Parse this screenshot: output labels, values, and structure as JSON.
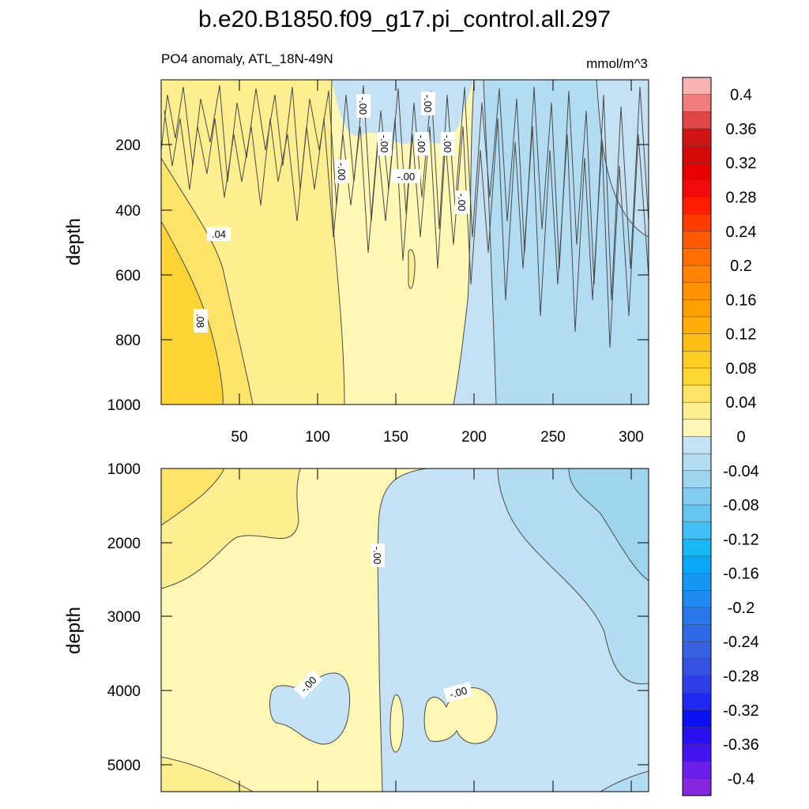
{
  "title": "b.e20.B1850.f09_g17.pi_control.all.297",
  "subtitle_left": "PO4 anomaly, ATL_18N-49N",
  "subtitle_right": "mmol/m^3",
  "colors": {
    "neg_light": "#c4e2f3",
    "neg_mid": "#b2dcf2",
    "neg_dark": "#9ed4ee",
    "pos_pale": "#fef8b4",
    "pos_light": "#fdef90",
    "pos_mid": "#fde468",
    "pos_deep": "#fcd535",
    "contour": "#4a4a4a"
  },
  "chart_data": [
    {
      "type": "contour",
      "panel": "upper",
      "variable": "PO4 anomaly",
      "region": "ATL_18N-49N",
      "units": "mmol/m^3",
      "xlabel": "",
      "ylabel": "depth",
      "xlim": [
        0,
        310
      ],
      "ylim": [
        1000,
        0
      ],
      "x_ticks": [
        50,
        100,
        150,
        200,
        250,
        300
      ],
      "y_ticks": [
        200,
        400,
        600,
        800,
        1000
      ],
      "regions": [
        {
          "x_from": 0,
          "x_to": 120,
          "sign": "positive",
          "max_value": 0.08
        },
        {
          "x_from": 120,
          "x_to": 195,
          "sign": "positive",
          "max_value": 0.04
        },
        {
          "x_from": 195,
          "x_to": 310,
          "sign": "negative",
          "min_value": -0.04
        }
      ],
      "contour_labels": [
        ".04",
        ".08",
        "-.00",
        "-.00",
        "-.00",
        "-.00",
        "-.00",
        "-.00",
        "-.00",
        "-.00"
      ]
    },
    {
      "type": "contour",
      "panel": "lower",
      "variable": "PO4 anomaly",
      "region": "ATL_18N-49N",
      "units": "mmol/m^3",
      "xlabel": "",
      "ylabel": "depth",
      "xlim": [
        0,
        310
      ],
      "ylim": [
        5400,
        1000
      ],
      "x_ticks": [],
      "y_ticks": [
        1000,
        2000,
        3000,
        4000,
        5000
      ],
      "regions": [
        {
          "x_from": 0,
          "x_to": 140,
          "sign": "positive",
          "max_value": 0.08
        },
        {
          "x_from": 140,
          "x_to": 310,
          "sign": "negative",
          "min_value": -0.08
        }
      ],
      "contour_labels": [
        "-.00",
        "-.00",
        "-.00"
      ]
    }
  ],
  "colorbar": {
    "labels": [
      "0.4",
      "0.36",
      "0.32",
      "0.28",
      "0.24",
      "0.2",
      "0.16",
      "0.12",
      "0.08",
      "0.04",
      "0",
      "-0.04",
      "-0.08",
      "-0.12",
      "-0.16",
      "-0.2",
      "-0.24",
      "-0.28",
      "-0.32",
      "-0.36",
      "-0.4"
    ],
    "colors": [
      "#f9b3b3",
      "#f07c7c",
      "#e04848",
      "#cf1414",
      "#d60a0a",
      "#e80000",
      "#f30a0a",
      "#ff1e00",
      "#ff3c00",
      "#ff5a00",
      "#ff6e00",
      "#ff8200",
      "#ff9200",
      "#ffa000",
      "#ffae08",
      "#ffbe14",
      "#ffcc22",
      "#fed732",
      "#fde468",
      "#fdef90",
      "#fef8b4",
      "#c4e2f3",
      "#b2dcf2",
      "#9ed4ee",
      "#80cbef",
      "#66c4f2",
      "#40c0f7",
      "#18b8f7",
      "#0aa8f6",
      "#1498f4",
      "#1e8af2",
      "#2878ec",
      "#2e6ae6",
      "#3760e2",
      "#3652e0",
      "#2e3de6",
      "#1e28ee",
      "#0a10f0",
      "#2b0ff0",
      "#4413ee",
      "#6a1ee8",
      "#8428e0"
    ]
  }
}
